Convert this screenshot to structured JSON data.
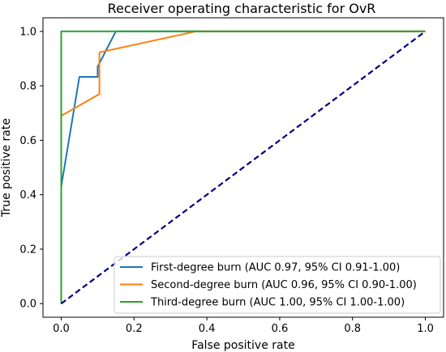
{
  "chart_data": {
    "type": "line",
    "title": "Receiver operating characteristic for OvR",
    "xlabel": "False positive rate",
    "ylabel": "True positive rate",
    "xlim": [
      -0.05,
      1.05
    ],
    "ylim": [
      -0.05,
      1.05
    ],
    "xticks": [
      "0.0",
      "0.2",
      "0.4",
      "0.6",
      "0.8",
      "1.0"
    ],
    "yticks": [
      "0.0",
      "0.2",
      "0.4",
      "0.6",
      "0.8",
      "1.0"
    ],
    "grid": false,
    "legend_position": "lower-right",
    "series": [
      {
        "name": "First-degree burn (AUC 0.97, 95% CI 0.91-1.00)",
        "color": "#1f77b4",
        "x": [
          0.0,
          0.0,
          0.05,
          0.1,
          0.1,
          0.15,
          1.0
        ],
        "y": [
          0.0,
          0.43,
          0.833,
          0.833,
          0.87,
          1.0,
          1.0
        ]
      },
      {
        "name": "Second-degree burn (AUC 0.96, 95% CI 0.90-1.00)",
        "color": "#ff7f0e",
        "x": [
          0.0,
          0.0,
          0.105,
          0.105,
          0.37,
          1.0
        ],
        "y": [
          0.0,
          0.69,
          0.77,
          0.923,
          1.0,
          1.0
        ]
      },
      {
        "name": "Third-degree burn (AUC 1.00, 95% CI 1.00-1.00)",
        "color": "#2ca02c",
        "x": [
          0.0,
          0.0,
          1.0
        ],
        "y": [
          0.0,
          1.0,
          1.0
        ]
      }
    ],
    "reference_line": {
      "color": "#000080",
      "style": "dashed",
      "x": [
        0.0,
        1.0
      ],
      "y": [
        0.0,
        1.0
      ]
    }
  }
}
